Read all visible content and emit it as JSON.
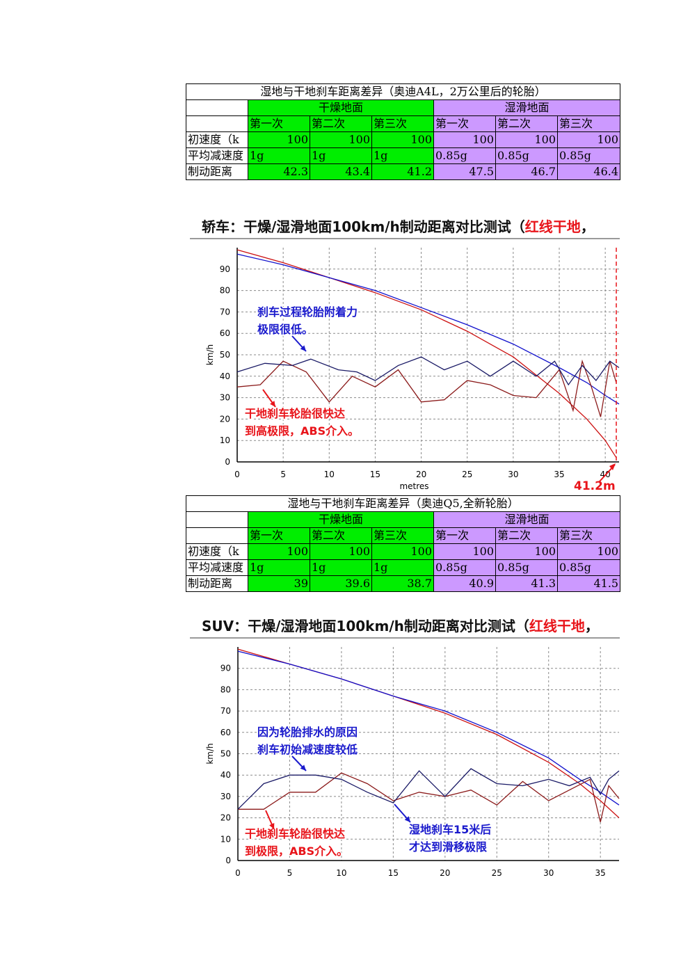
{
  "table1": {
    "title": "湿地与干地刹车距离差异（奥迪A4L，2万公里后的轮胎）",
    "group_dry": "干燥地面",
    "group_wet": "湿滑地面",
    "runs": [
      "第一次",
      "第二次",
      "第三次",
      "第一次",
      "第二次",
      "第三次"
    ],
    "rows": [
      {
        "label": "初速度（k",
        "values": [
          "100",
          "100",
          "100",
          "100",
          "100",
          "100"
        ]
      },
      {
        "label": "平均减速度",
        "values": [
          "1g",
          "1g",
          "1g",
          "0.85g",
          "0.85g",
          "0.85g"
        ]
      },
      {
        "label": "制动距离",
        "values": [
          "42.3",
          "43.4",
          "41.2",
          "47.5",
          "46.7",
          "46.4"
        ]
      }
    ]
  },
  "heading1": {
    "main": "轿车：干燥/湿滑地面100km/h制动距离对比测试（",
    "red": "红线干地",
    "tail": "，"
  },
  "table2": {
    "title": "湿地与干地刹车距离差异（奥迪Q5,全新轮胎）",
    "group_dry": "干燥地面",
    "group_wet": "湿滑地面",
    "runs": [
      "第一次",
      "第二次",
      "第三次",
      "第一次",
      "第二次",
      "第三次"
    ],
    "rows": [
      {
        "label": "初速度（k",
        "values": [
          "100",
          "100",
          "100",
          "100",
          "100",
          "100"
        ]
      },
      {
        "label": "平均减速度",
        "values": [
          "1g",
          "1g",
          "1g",
          "0.85g",
          "0.85g",
          "0.85g"
        ]
      },
      {
        "label": "制动距离",
        "values": [
          "39",
          "39.6",
          "38.7",
          "40.9",
          "41.3",
          "41.5"
        ]
      }
    ]
  },
  "heading2": {
    "main": "SUV：干燥/湿滑地面100km/h制动距离对比测试（",
    "red": "红线干地",
    "tail": "，"
  },
  "chart_data": [
    {
      "type": "line",
      "ylabel": "km/h",
      "xlabel": "metres",
      "xlim": [
        0,
        41.5
      ],
      "ylim": [
        0,
        100
      ],
      "xticks": [
        0,
        5,
        10,
        15,
        20,
        25,
        30,
        35,
        40
      ],
      "yticks": [
        0,
        10,
        20,
        30,
        40,
        50,
        60,
        70,
        80,
        90
      ],
      "grid": true,
      "marker_x": 41.2,
      "marker_label": "41.2m",
      "annotations": [
        {
          "lines": [
            "刹车过程轮胎附着力",
            "极限很低。"
          ],
          "color": "#1a1acc"
        },
        {
          "lines": [
            "干地刹车轮胎很快达",
            "到高极限，ABS介入。"
          ],
          "color": "#e8141a"
        }
      ],
      "series": [
        {
          "color": "#cc1010",
          "kind": "speed",
          "x": [
            0,
            5,
            10,
            15,
            20,
            25,
            30,
            35,
            38,
            40,
            41.2
          ],
          "y": [
            99,
            93,
            86,
            79,
            71,
            61,
            49,
            32,
            20,
            10,
            2
          ]
        },
        {
          "color": "#1010cc",
          "kind": "speed",
          "x": [
            0,
            5,
            10,
            15,
            20,
            25,
            30,
            35,
            38,
            40,
            41.5
          ],
          "y": [
            97,
            92,
            86,
            80,
            72,
            64,
            55,
            44,
            37,
            31,
            27
          ]
        },
        {
          "color": "#8b1a1a",
          "kind": "decel",
          "x": [
            0,
            2.5,
            5,
            7.5,
            10,
            12.5,
            15,
            17.5,
            20,
            22.5,
            25,
            27.5,
            30,
            32.5,
            35,
            36.5,
            37.5,
            38.5,
            39.5,
            40.5,
            41.2
          ],
          "y": [
            35,
            36,
            47,
            42,
            28,
            40,
            35,
            43,
            28,
            29,
            38,
            36,
            31,
            30,
            43,
            24,
            47,
            35,
            21,
            47,
            37
          ]
        },
        {
          "color": "#1a1a66",
          "kind": "decel",
          "x": [
            0,
            3,
            6,
            8,
            11,
            13,
            15,
            17.5,
            20,
            22.5,
            25,
            27.5,
            30,
            32.5,
            34.5,
            36,
            37.5,
            39,
            40.5,
            41.5
          ],
          "y": [
            42,
            46,
            45,
            48,
            43,
            42,
            38,
            45,
            49,
            43,
            47,
            40,
            47,
            40,
            47,
            36,
            45,
            38,
            47,
            44
          ]
        }
      ]
    },
    {
      "type": "line",
      "ylabel": "km/h",
      "xlabel": "",
      "xlim": [
        0,
        36.8
      ],
      "ylim": [
        0,
        100
      ],
      "xticks": [
        0,
        5,
        10,
        15,
        20,
        25,
        30,
        35
      ],
      "yticks": [
        0,
        10,
        20,
        30,
        40,
        50,
        60,
        70,
        80,
        90
      ],
      "grid": true,
      "annotations": [
        {
          "lines": [
            "因为轮胎排水的原因",
            "刹车初始减速度较低"
          ],
          "color": "#1a1acc"
        },
        {
          "lines": [
            "干地刹车轮胎很快达",
            "到极限，ABS介入。"
          ],
          "color": "#e8141a"
        },
        {
          "lines": [
            "湿地刹车15米后",
            "才达到滑移极限"
          ],
          "color": "#1a1acc"
        }
      ],
      "series": [
        {
          "color": "#cc1010",
          "kind": "speed",
          "x": [
            0,
            5,
            10,
            15,
            20,
            25,
            30,
            33,
            35,
            36.8
          ],
          "y": [
            99,
            92,
            85,
            77,
            69,
            59,
            46,
            36,
            28,
            20
          ]
        },
        {
          "color": "#1010cc",
          "kind": "speed",
          "x": [
            0,
            5,
            10,
            15,
            20,
            25,
            30,
            33,
            35,
            36.8
          ],
          "y": [
            98,
            92,
            85,
            77,
            70,
            60,
            48,
            38,
            32,
            26
          ]
        },
        {
          "color": "#8b1a1a",
          "kind": "decel",
          "x": [
            0,
            2.5,
            5,
            7.5,
            10,
            12.5,
            15,
            17.5,
            20,
            22.5,
            25,
            27.5,
            30,
            32,
            34,
            35,
            35.8,
            36.8
          ],
          "y": [
            24,
            24,
            32,
            32,
            41,
            36,
            28,
            32,
            30,
            33,
            26,
            37,
            28,
            33,
            38,
            18,
            35,
            29
          ]
        },
        {
          "color": "#1a1a66",
          "kind": "decel",
          "x": [
            0,
            2.5,
            5,
            7.5,
            10,
            12.5,
            15,
            17.5,
            20,
            22.5,
            25,
            27.5,
            30,
            32,
            34,
            35,
            35.8,
            36.8
          ],
          "y": [
            24,
            36,
            40,
            40,
            38,
            32,
            27,
            42,
            30,
            43,
            36,
            35,
            38,
            35,
            39,
            31,
            38,
            42
          ]
        }
      ]
    }
  ]
}
